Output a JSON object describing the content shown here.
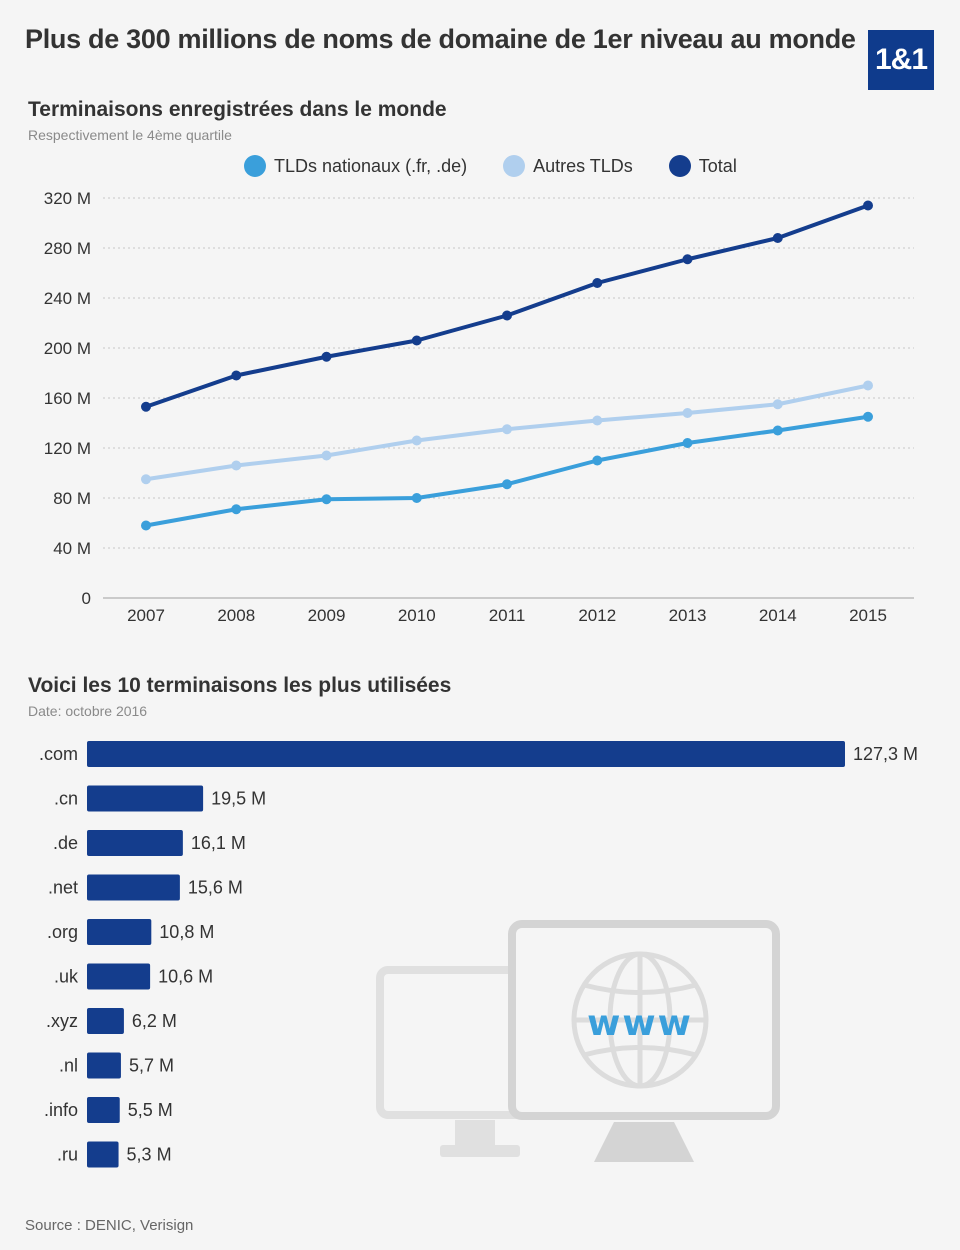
{
  "header": {
    "title": "Plus de 300 millions de noms de domaine de 1er niveau au monde",
    "logo_text": "1&1"
  },
  "line_section": {
    "title": "Terminaisons enregistrées dans le monde",
    "subtitle": "Respectivement le 4ème quartile"
  },
  "bar_section": {
    "title": "Voici les 10 terminaisons les plus utilisées",
    "subtitle": "Date: octobre 2016"
  },
  "illustration": {
    "label": "www"
  },
  "source": "Source : DENIC, Verisign",
  "colors": {
    "national": "#3a9fdb",
    "autres": "#b0cfee",
    "total": "#143d8d",
    "bar": "#143d8d",
    "grid": "#c8c8c8"
  },
  "chart_data": [
    {
      "type": "line",
      "title": "Terminaisons enregistrées dans le monde",
      "subtitle": "Respectivement le 4ème quartile",
      "x": [
        2007,
        2008,
        2009,
        2010,
        2011,
        2012,
        2013,
        2014,
        2015
      ],
      "y_ticks": [
        "0",
        "40 M",
        "80 M",
        "120 M",
        "160 M",
        "200 M",
        "240 M",
        "280 M",
        "320 M"
      ],
      "ylim": [
        0,
        320
      ],
      "grid": true,
      "legend_position": "top",
      "series": [
        {
          "name": "TLDs nationaux (.fr, .de)",
          "color": "#3a9fdb",
          "values": [
            58,
            71,
            79,
            80,
            91,
            110,
            124,
            134,
            145
          ]
        },
        {
          "name": "Autres TLDs",
          "color": "#b0cfee",
          "values": [
            95,
            106,
            114,
            126,
            135,
            142,
            148,
            155,
            170
          ]
        },
        {
          "name": "Total",
          "color": "#143d8d",
          "values": [
            153,
            178,
            193,
            206,
            226,
            252,
            271,
            288,
            314
          ]
        }
      ]
    },
    {
      "type": "bar",
      "orientation": "horizontal",
      "title": "Voici les 10 terminaisons les plus utilisées",
      "subtitle": "Date: octobre 2016",
      "categories": [
        ".com",
        ".cn",
        ".de",
        ".net",
        ".org",
        ".uk",
        ".xyz",
        ".nl",
        ".info",
        ".ru"
      ],
      "values": [
        127.3,
        19.5,
        16.1,
        15.6,
        10.8,
        10.6,
        6.2,
        5.7,
        5.5,
        5.3
      ],
      "labels": [
        "127,3 M",
        "19,5 M",
        "16,1 M",
        "15,6 M",
        "10,8 M",
        "10,6 M",
        "6,2 M",
        "5,7 M",
        "5,5 M",
        "5,3 M"
      ]
    }
  ]
}
